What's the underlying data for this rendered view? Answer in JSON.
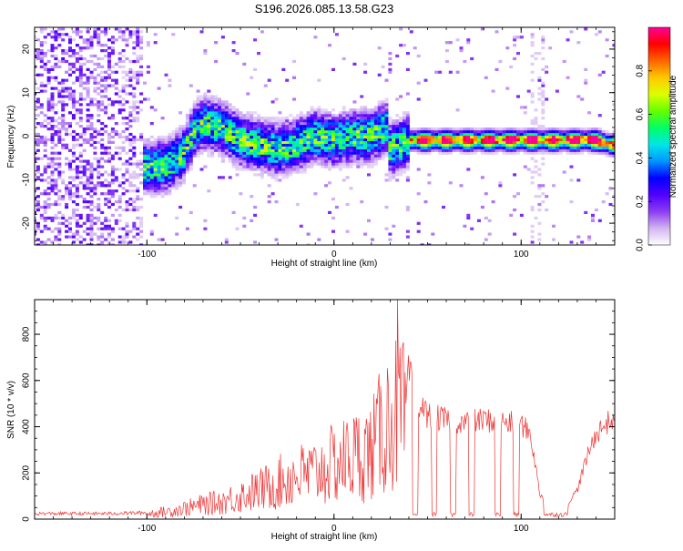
{
  "title": "S196.2026.085.13.58.G23",
  "chart_data": [
    {
      "type": "heatmap",
      "title": "S196.2026.085.13.58.G23",
      "xlabel": "Height of straight line (km)",
      "ylabel": "Frequency (Hz)",
      "xlim": [
        -160,
        150
      ],
      "ylim": [
        -25,
        25
      ],
      "xticks": [
        -100,
        0,
        100
      ],
      "xtick_labels": [
        "-100",
        "0",
        "100"
      ],
      "yticks": [
        -20,
        -10,
        0,
        10,
        20
      ],
      "ytick_labels": [
        "-20",
        "-10",
        "0",
        "10",
        "20"
      ],
      "colorbar": {
        "label": "Normalized spectral amplitude",
        "range": [
          0,
          1
        ],
        "ticks": [
          0.0,
          0.2,
          0.4,
          0.6,
          0.8
        ],
        "tick_labels": [
          "0.0",
          "0.2",
          "0.4",
          "0.6",
          "0.8"
        ],
        "colors": [
          "#ffffff",
          "#d2b4f0",
          "#8c3cf0",
          "#5000ff",
          "#0000ff",
          "#0096ff",
          "#00e6e6",
          "#00ff64",
          "#64ff00",
          "#dcff00",
          "#ffc800",
          "#ff6400",
          "#ff0000",
          "#ff0096"
        ]
      },
      "ridge": {
        "x": [
          -100,
          -90,
          -80,
          -75,
          -70,
          -60,
          -50,
          -40,
          -30,
          -20,
          -10,
          0,
          10,
          20,
          28,
          30,
          40,
          60,
          80,
          100,
          120,
          140,
          148
        ],
        "y": [
          -7,
          -7,
          -4,
          1,
          3,
          2,
          -1,
          -2,
          -3,
          -2,
          0,
          -1,
          0,
          0,
          2,
          -3,
          -1,
          -1,
          -1,
          -1,
          -1,
          -1,
          -2
        ]
      }
    },
    {
      "type": "line",
      "xlabel": "Height of straight line (km)",
      "ylabel": "SNR (10 * v/v)",
      "xlim": [
        -160,
        150
      ],
      "ylim": [
        0,
        950
      ],
      "xticks": [
        -100,
        0,
        100
      ],
      "xtick_labels": [
        "-100",
        "0",
        "100"
      ],
      "yticks": [
        0,
        200,
        400,
        600,
        800
      ],
      "ytick_labels": [
        "0",
        "200",
        "400",
        "600",
        "800"
      ],
      "series": [
        {
          "name": "SNR",
          "color": "#ee3333",
          "envelope": {
            "x": [
              -160,
              -120,
              -100,
              -85,
              -70,
              -60,
              -50,
              -40,
              -30,
              -20,
              -10,
              0,
              10,
              20,
              25,
              30,
              35,
              40,
              45,
              50,
              60,
              70,
              80,
              90,
              100,
              105,
              110,
              115,
              120,
              125,
              130,
              135,
              140,
              145,
              150
            ],
            "y": [
              30,
              30,
              35,
              60,
              100,
              120,
              160,
              200,
              250,
              300,
              320,
              380,
              430,
              470,
              600,
              700,
              740,
              650,
              520,
              460,
              440,
              430,
              440,
              430,
              420,
              380,
              110,
              70,
              70,
              70,
              130,
              270,
              380,
              420,
              450
            ]
          },
          "gaps": [
            {
              "x": [
                42,
                45
              ],
              "y": 20
            },
            {
              "x": [
                52,
                55
              ],
              "y": 20
            },
            {
              "x": [
                62,
                65
              ],
              "y": 20
            },
            {
              "x": [
                72,
                75
              ],
              "y": 20
            },
            {
              "x": [
                86,
                89
              ],
              "y": 20
            },
            {
              "x": [
                96,
                99
              ],
              "y": 20
            },
            {
              "x": [
                112,
                125
              ],
              "y": 20
            }
          ],
          "peak": {
            "x": 34,
            "y": 950
          }
        }
      ]
    }
  ]
}
